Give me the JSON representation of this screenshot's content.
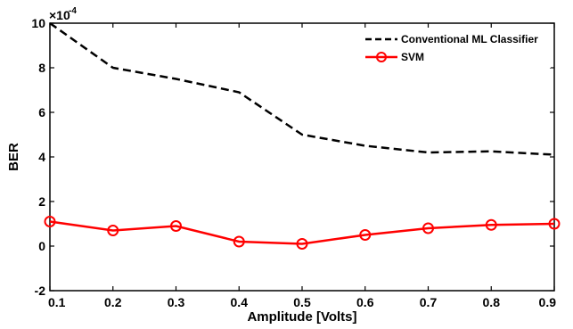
{
  "chart_data": {
    "type": "line",
    "xlabel": "Amplitude [Volts]",
    "ylabel": "BER",
    "y_multiplier_label": "×10",
    "y_multiplier_exponent": "-4",
    "x": [
      0.1,
      0.2,
      0.3,
      0.4,
      0.5,
      0.6,
      0.7,
      0.8,
      0.9
    ],
    "xticks": [
      "0.1",
      "0.2",
      "0.3",
      "0.4",
      "0.5",
      "0.6",
      "0.7",
      "0.8",
      "0.9"
    ],
    "yticks": [
      "-2",
      "0",
      "2",
      "4",
      "6",
      "8",
      "10"
    ],
    "xlim": [
      0.1,
      0.9
    ],
    "ylim": [
      -2,
      10
    ],
    "grid": false,
    "legend_position": "top-right",
    "series": [
      {
        "name": "Conventional ML Classifier",
        "color": "#000000",
        "style": "dashed",
        "marker": "none",
        "values": [
          10,
          8,
          7.5,
          6.9,
          5,
          4.5,
          4.2,
          4.25,
          4.1
        ]
      },
      {
        "name": "SVM",
        "color": "#ff0000",
        "style": "solid",
        "marker": "circle",
        "values": [
          1.1,
          0.7,
          0.9,
          0.2,
          0.1,
          0.5,
          0.8,
          0.95,
          1.0
        ]
      }
    ]
  }
}
